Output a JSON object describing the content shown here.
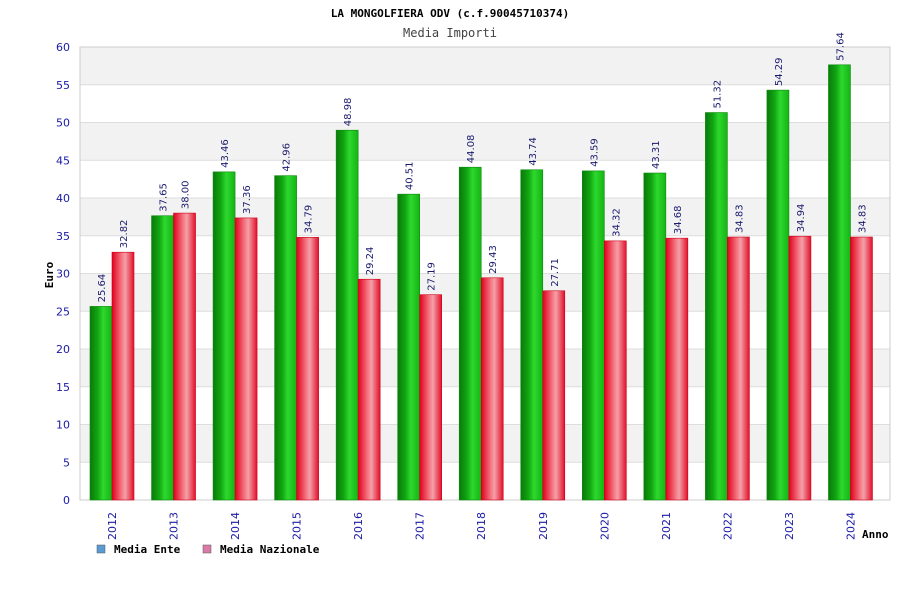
{
  "chart_data": {
    "type": "bar",
    "title": "LA MONGOLFIERA ODV (c.f.90045710374)",
    "subtitle": "Media Importi",
    "xlabel": "Anno",
    "ylabel": "Euro",
    "ylim": [
      0,
      60
    ],
    "ytick_step": 5,
    "grid": true,
    "legend_position": "bottom-left",
    "categories": [
      "2012",
      "2013",
      "2014",
      "2015",
      "2016",
      "2017",
      "2018",
      "2019",
      "2020",
      "2021",
      "2022",
      "2023",
      "2024"
    ],
    "series": [
      {
        "name": "Media Ente",
        "color": "#22bb22",
        "legend_color": "#5b9bd5",
        "values": [
          25.64,
          37.65,
          43.46,
          42.96,
          48.98,
          40.51,
          44.08,
          43.74,
          43.59,
          43.31,
          51.32,
          54.29,
          57.64
        ],
        "labels": [
          "25.64",
          "37.65",
          "43.46",
          "42.96",
          "48.98",
          "40.51",
          "44.08",
          "43.74",
          "43.59",
          "43.31",
          "51.32",
          "54.29",
          "57.64"
        ]
      },
      {
        "name": "Media Nazionale",
        "color": "#ee2233",
        "legend_color": "#d97aa8",
        "values": [
          32.82,
          38.0,
          37.36,
          34.79,
          29.24,
          27.19,
          29.43,
          27.71,
          34.32,
          34.68,
          34.83,
          34.94,
          34.83
        ],
        "labels": [
          "32.82",
          "38.00",
          "37.36",
          "34.79",
          "29.24",
          "27.19",
          "29.43",
          "27.71",
          "34.32",
          "34.68",
          "34.83",
          "34.94",
          "34.83"
        ]
      }
    ]
  }
}
